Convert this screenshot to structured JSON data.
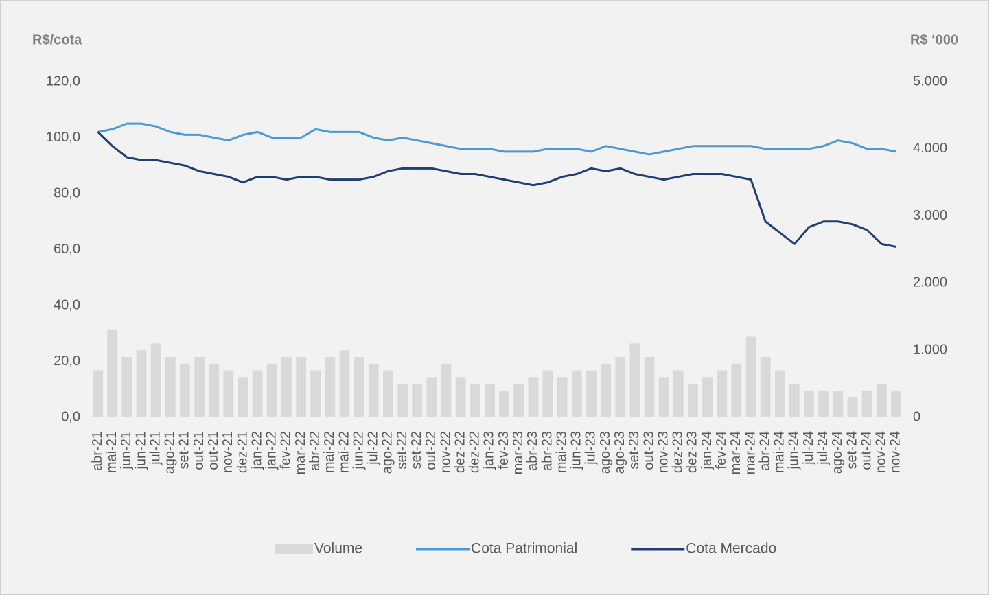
{
  "chart_data": {
    "type": "line",
    "y_label": "R$/cota",
    "y2_label": "R$ ‘000",
    "categories": [
      "abr-21",
      "mai-21",
      "jun-21",
      "jun-21",
      "jul-21",
      "ago-21",
      "set-21",
      "out-21",
      "out-21",
      "nov-21",
      "dez-21",
      "jan-22",
      "jan-22",
      "fev-22",
      "mar-22",
      "abr-22",
      "mai-22",
      "mai-22",
      "jun-22",
      "jul-22",
      "ago-22",
      "set-22",
      "set-22",
      "out-22",
      "nov-22",
      "dez-22",
      "dez-22",
      "jan-23",
      "fev-23",
      "mar-23",
      "abr-23",
      "abr-23",
      "mai-23",
      "jun-23",
      "jul-23",
      "ago-23",
      "ago-23",
      "set-23",
      "out-23",
      "nov-23",
      "dez-23",
      "dez-23",
      "jan-24",
      "fev-24",
      "mar-24",
      "mar-24",
      "abr-24",
      "mai-24",
      "jun-24",
      "jul-24",
      "jul-24",
      "ago-24",
      "set-24",
      "out-24",
      "nov-24",
      "nov-24"
    ],
    "series": [
      {
        "name": "Volume",
        "type": "bar",
        "axis": "y2",
        "color": "#d9d9d9",
        "values": [
          700,
          1300,
          900,
          1000,
          1100,
          900,
          800,
          900,
          800,
          700,
          600,
          700,
          800,
          900,
          900,
          700,
          900,
          1000,
          900,
          800,
          700,
          500,
          500,
          600,
          800,
          600,
          500,
          500,
          400,
          500,
          600,
          700,
          600,
          700,
          700,
          800,
          900,
          1100,
          900,
          600,
          700,
          500,
          600,
          700,
          800,
          1200,
          900,
          700,
          500,
          400,
          400,
          400,
          300,
          400,
          500,
          400
        ]
      },
      {
        "name": "Cota Patrimonial",
        "type": "line",
        "color": "#4a9ad8",
        "values": [
          102,
          103,
          105,
          105,
          104,
          102,
          101,
          101,
          100,
          99,
          101,
          102,
          100,
          100,
          100,
          103,
          102,
          102,
          102,
          100,
          99,
          100,
          99,
          98,
          97,
          96,
          96,
          96,
          95,
          95,
          95,
          96,
          96,
          96,
          95,
          97,
          96,
          95,
          94,
          95,
          96,
          97,
          97,
          97,
          97,
          97,
          96,
          96,
          96,
          96,
          97,
          99,
          98,
          96,
          96,
          95
        ]
      },
      {
        "name": "Cota Mercado",
        "type": "line",
        "color": "#1f3f73",
        "values": [
          102,
          97,
          93,
          92,
          92,
          91,
          90,
          88,
          87,
          86,
          84,
          86,
          86,
          85,
          86,
          86,
          85,
          85,
          85,
          86,
          88,
          89,
          89,
          89,
          88,
          87,
          87,
          86,
          85,
          84,
          83,
          84,
          86,
          87,
          89,
          88,
          89,
          87,
          86,
          85,
          86,
          87,
          87,
          87,
          86,
          85,
          70,
          66,
          62,
          68,
          70,
          70,
          69,
          67,
          62,
          61
        ]
      }
    ],
    "ylim": [
      0,
      120
    ],
    "yticks": [
      {
        "value": 0,
        "label": "0,0"
      },
      {
        "value": 20,
        "label": "20,0"
      },
      {
        "value": 40,
        "label": "40,0"
      },
      {
        "value": 60,
        "label": "60,0"
      },
      {
        "value": 80,
        "label": "80,0"
      },
      {
        "value": 100,
        "label": "100,0"
      },
      {
        "value": 120,
        "label": "120,0"
      }
    ],
    "y2lim": [
      0,
      5000
    ],
    "y2ticks": [
      0,
      {
        "value": 1000,
        "label": "1.000"
      },
      {
        "value": 2000,
        "label": "2.000"
      },
      {
        "value": 3000,
        "label": "3.000"
      },
      {
        "value": 4000,
        "label": "4.000"
      },
      {
        "value": 5000,
        "label": "5.000"
      }
    ],
    "legend": "bottom",
    "grid": false
  }
}
